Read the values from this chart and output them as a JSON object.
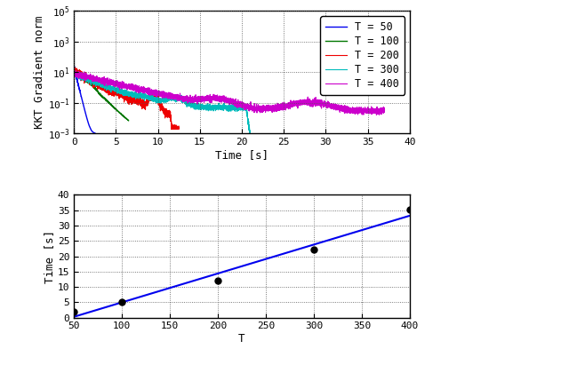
{
  "top_plot": {
    "xlabel": "Time [s]",
    "ylabel": "KKT Gradient norm",
    "xlim": [
      0,
      40
    ],
    "ymin": 0.001,
    "ymax": 100000.0,
    "xticks": [
      0,
      5,
      10,
      15,
      20,
      25,
      30,
      35,
      40
    ],
    "series": [
      {
        "label": "T = 50",
        "color": "#0000EE",
        "end_time": 2.5,
        "start_val": 20.0,
        "floor": 0.001
      },
      {
        "label": "T = 100",
        "color": "#007700",
        "end_time": 6.5,
        "start_val": 15.0,
        "floor": 0.001
      },
      {
        "label": "T = 200",
        "color": "#EE0000",
        "end_time": 12.5,
        "start_val": 15.0,
        "floor": 0.002
      },
      {
        "label": "T = 300",
        "color": "#00BBBB",
        "end_time": 22.5,
        "start_val": 10.0,
        "floor": 0.0003
      },
      {
        "label": "T = 400",
        "color": "#CC00CC",
        "end_time": 37.0,
        "start_val": 10.0,
        "floor": 0.005
      }
    ]
  },
  "bottom_plot": {
    "xlabel": "T",
    "ylabel": "Time [s]",
    "xlim": [
      50,
      400
    ],
    "ylim": [
      0,
      40
    ],
    "xticks": [
      50,
      100,
      150,
      200,
      250,
      300,
      350,
      400
    ],
    "yticks": [
      0,
      5,
      10,
      15,
      20,
      25,
      30,
      35,
      40
    ],
    "T_values": [
      50,
      100,
      200,
      300,
      400
    ],
    "time_values": [
      2.0,
      5.0,
      12.0,
      22.3,
      35.3
    ],
    "line_color": "#0000EE",
    "marker_color": "#000000"
  },
  "bg_color": "#FFFFFF",
  "font_family": "monospace"
}
